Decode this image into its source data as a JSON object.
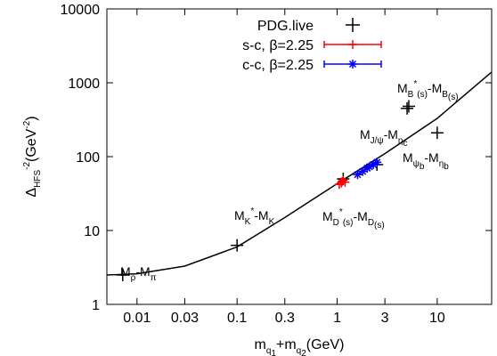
{
  "chart_data": {
    "type": "scatter",
    "xlog": true,
    "ylog": true,
    "xlabel": [
      {
        "t": "m"
      },
      {
        "t": "q",
        "pos": "sub"
      },
      {
        "t": "1",
        "pos": "sub2"
      },
      {
        "t": "+m"
      },
      {
        "t": "q",
        "pos": "sub"
      },
      {
        "t": "2",
        "pos": "sub2"
      },
      {
        "t": "(GeV)"
      }
    ],
    "ylabel": [
      {
        "t": "Δ"
      },
      {
        "t": "HFS",
        "pos": "sub"
      },
      {
        "t": "-2",
        "pos": "sup"
      },
      {
        "t": "(GeV"
      },
      {
        "t": "-2",
        "pos": "sup"
      },
      {
        "t": ")"
      }
    ],
    "xlim": [
      0.005,
      35
    ],
    "ylim": [
      1,
      10000
    ],
    "xticks": [
      0.01,
      0.03,
      0.1,
      0.3,
      1,
      3,
      10
    ],
    "yticks": [
      1,
      10,
      100,
      1000,
      10000
    ],
    "legend": "top-right",
    "series": [
      {
        "name": "PDG.live",
        "color": "#000000",
        "marker": "plus",
        "x": [
          0.0072,
          0.1,
          1.15,
          2.5,
          5,
          5.2,
          10
        ],
        "values": [
          2.5,
          6.3,
          50,
          78,
          450,
          480,
          210
        ]
      },
      {
        "name": "s-c, β=2.25",
        "color": "#ff0000",
        "marker": "plus-err",
        "x": [
          1.05,
          1.1,
          1.12,
          1.15,
          1.2
        ],
        "values": [
          42,
          44,
          46,
          48,
          45
        ]
      },
      {
        "name": "c-c, β=2.25",
        "color": "#0000ff",
        "marker": "star-err",
        "x": [
          1.6,
          1.8,
          2,
          2.1,
          2.3,
          2.5
        ],
        "values": [
          57,
          63,
          70,
          73,
          78,
          84
        ]
      }
    ],
    "curve": {
      "color": "#000000",
      "x": [
        0.005,
        0.01,
        0.03,
        0.1,
        0.3,
        1,
        3,
        10,
        35
      ],
      "values": [
        2.5,
        2.6,
        3.3,
        6,
        15,
        43,
        110,
        330,
        1400
      ]
    },
    "annotations": [
      [
        {
          "t": "M"
        },
        {
          "t": "ρ",
          "pos": "sub"
        },
        {
          "t": "-M"
        },
        {
          "t": "π",
          "pos": "sub"
        }
      ],
      [
        {
          "t": "M"
        },
        {
          "t": "K",
          "pos": "sub"
        },
        {
          "t": "*",
          "pos": "sup"
        },
        {
          "t": "-M"
        },
        {
          "t": "K",
          "pos": "sub"
        }
      ],
      [
        {
          "t": "M"
        },
        {
          "t": "D",
          "pos": "sub"
        },
        {
          "t": "*",
          "pos": "sup"
        },
        {
          "t": "(s)",
          "pos": "sub"
        },
        {
          "t": "-M"
        },
        {
          "t": "D",
          "pos": "sub"
        },
        {
          "t": "(s)",
          "pos": "sub2"
        }
      ],
      [
        {
          "t": "M"
        },
        {
          "t": "J/ψ",
          "pos": "sub"
        },
        {
          "t": "-M"
        },
        {
          "t": "η",
          "pos": "sub"
        },
        {
          "t": "c",
          "pos": "sub2"
        }
      ],
      [
        {
          "t": "M"
        },
        {
          "t": "B",
          "pos": "sub"
        },
        {
          "t": "*",
          "pos": "sup"
        },
        {
          "t": "(s)",
          "pos": "sub"
        },
        {
          "t": "-M"
        },
        {
          "t": "B",
          "pos": "sub"
        },
        {
          "t": "(s)",
          "pos": "sub2"
        }
      ],
      [
        {
          "t": "M"
        },
        {
          "t": "ψ",
          "pos": "sub"
        },
        {
          "t": "b",
          "pos": "sub2"
        },
        {
          "t": "-M"
        },
        {
          "t": "η",
          "pos": "sub"
        },
        {
          "t": "b",
          "pos": "sub2"
        }
      ]
    ]
  }
}
